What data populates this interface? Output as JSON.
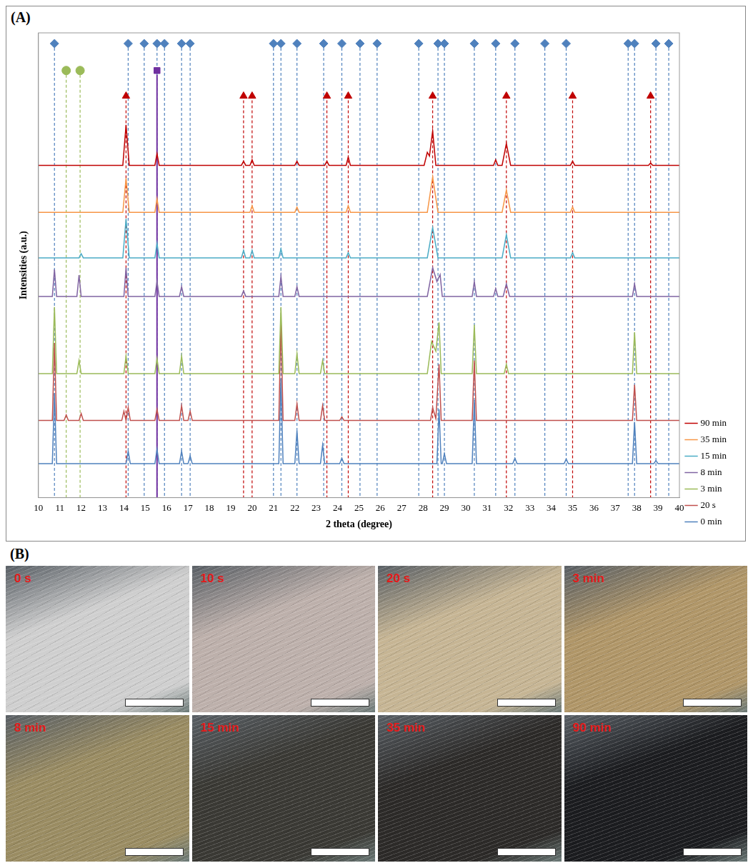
{
  "chart_data": {
    "type": "line",
    "x_label": "2 theta (degree)",
    "y_label": "Intensities (a.u.)",
    "xlim": [
      10,
      40
    ],
    "xticks": [
      10,
      11,
      12,
      13,
      14,
      15,
      16,
      17,
      18,
      19,
      20,
      21,
      22,
      23,
      24,
      25,
      26,
      27,
      28,
      29,
      30,
      31,
      32,
      33,
      34,
      35,
      36,
      37,
      38,
      39,
      40
    ],
    "ylim": [
      0,
      100
    ],
    "tick_labels": "x",
    "grid": false,
    "legend": "right",
    "series": [
      {
        "name": "90 min",
        "color": "#c00000",
        "x": [
          10,
          13.95,
          14.1,
          14.25,
          15.45,
          15.55,
          15.65,
          19.5,
          19.6,
          19.7,
          19.9,
          20.0,
          20.1,
          22.0,
          22.1,
          22.2,
          23.4,
          23.5,
          23.6,
          24.4,
          24.5,
          24.6,
          28.05,
          28.2,
          28.3,
          28.45,
          28.6,
          31.3,
          31.4,
          31.5,
          31.7,
          31.9,
          32.1,
          34.9,
          35.0,
          35.1,
          38.55,
          38.65,
          38.75,
          40
        ],
        "values": [
          71.5,
          71.5,
          80.2,
          71.5,
          71.5,
          74,
          71.5,
          71.5,
          72.4,
          71.5,
          71.5,
          72.7,
          71.5,
          71.5,
          72.4,
          71.5,
          71.5,
          72.4,
          71.5,
          71.5,
          73.3,
          71.5,
          71.5,
          74.3,
          73.5,
          78.9,
          71.5,
          71.5,
          72.7,
          71.5,
          71.5,
          76.2,
          71.5,
          71.5,
          72.4,
          71.5,
          71.5,
          72,
          71.5,
          71.5
        ]
      },
      {
        "name": "35 min",
        "color": "#f79646",
        "x": [
          10,
          13.95,
          14.1,
          14.25,
          15.45,
          15.55,
          15.65,
          19.9,
          20.0,
          20.1,
          22.0,
          22.1,
          22.2,
          24.4,
          24.5,
          24.6,
          28.2,
          28.45,
          28.7,
          31.7,
          31.9,
          32.1,
          34.9,
          35.0,
          35.1,
          40
        ],
        "values": [
          61.4,
          61.4,
          68.7,
          61.4,
          61.4,
          64.3,
          61.4,
          61.4,
          62.8,
          61.4,
          61.4,
          62.5,
          61.4,
          61.4,
          62.8,
          61.4,
          61.4,
          69,
          61.4,
          61.4,
          66.2,
          61.4,
          61.4,
          62.5,
          61.4,
          61.4
        ]
      },
      {
        "name": "15 min",
        "color": "#4bacc6",
        "x": [
          10,
          11.9,
          12.0,
          12.1,
          13.95,
          14.1,
          14.25,
          15.45,
          15.55,
          15.65,
          19.5,
          19.6,
          19.7,
          19.9,
          20.0,
          20.1,
          21.25,
          21.35,
          21.45,
          24.4,
          24.5,
          24.6,
          28.2,
          28.45,
          28.7,
          31.7,
          31.9,
          32.1,
          34.9,
          35.0,
          35.1,
          40
        ],
        "values": [
          51.6,
          51.6,
          52.5,
          51.6,
          51.6,
          60,
          51.6,
          51.6,
          54.7,
          51.6,
          51.6,
          53.2,
          51.6,
          51.6,
          53.2,
          51.6,
          51.6,
          53.5,
          51.6,
          51.6,
          52.7,
          51.6,
          51.6,
          58.1,
          51.6,
          51.6,
          56.6,
          51.6,
          51.6,
          52.7,
          51.6,
          51.6
        ]
      },
      {
        "name": "8 min",
        "color": "#8064a2",
        "x": [
          10,
          10.65,
          10.75,
          10.85,
          11.8,
          11.9,
          12.0,
          14.0,
          14.1,
          14.2,
          15.45,
          15.55,
          15.65,
          16.6,
          16.7,
          16.8,
          19.5,
          19.6,
          19.7,
          21.25,
          21.35,
          21.45,
          22.0,
          22.1,
          22.2,
          28.2,
          28.45,
          28.65,
          28.8,
          28.9,
          30.3,
          30.4,
          30.5,
          31.3,
          31.4,
          31.5,
          31.75,
          31.9,
          32.05,
          37.8,
          37.9,
          38.0,
          40
        ],
        "values": [
          43.3,
          43.3,
          49.1,
          43.3,
          43.3,
          47.9,
          43.3,
          43.3,
          49.5,
          43.3,
          43.3,
          46.5,
          43.3,
          43.3,
          45.4,
          43.3,
          43.3,
          44.5,
          43.3,
          43.3,
          47.6,
          43.3,
          43.3,
          45.4,
          43.3,
          43.3,
          49.5,
          46.5,
          48,
          43.3,
          43.3,
          46.5,
          43.3,
          43.3,
          45,
          43.3,
          43.3,
          46,
          43.3,
          43.3,
          46,
          43.3,
          43.3
        ]
      },
      {
        "name": "3 min",
        "color": "#9bbb59",
        "x": [
          10,
          10.65,
          10.75,
          10.85,
          11.8,
          11.9,
          12.0,
          14.0,
          14.1,
          14.2,
          15.45,
          15.55,
          15.65,
          16.6,
          16.7,
          16.8,
          21.25,
          21.35,
          21.45,
          22.0,
          22.1,
          22.2,
          23.2,
          23.3,
          23.4,
          28.2,
          28.4,
          28.6,
          28.75,
          28.85,
          30.3,
          30.4,
          30.5,
          31.8,
          31.9,
          32.0,
          37.8,
          37.9,
          38.0,
          40
        ],
        "values": [
          26.7,
          26.7,
          41,
          26.7,
          26.7,
          29.5,
          26.7,
          26.7,
          30.5,
          26.7,
          26.7,
          29.9,
          26.7,
          26.7,
          30.5,
          26.7,
          26.7,
          41,
          26.7,
          26.7,
          31,
          26.7,
          26.7,
          29.5,
          26.7,
          26.7,
          33.6,
          31.5,
          37.7,
          26.7,
          26.7,
          37.2,
          26.7,
          26.7,
          28.7,
          26.7,
          26.7,
          35.6,
          26.7,
          26.7
        ]
      },
      {
        "name": "20 s",
        "color": "#c0504d",
        "x": [
          10,
          10.65,
          10.75,
          10.85,
          11.2,
          11.3,
          11.4,
          11.9,
          12.0,
          12.1,
          13.9,
          14.0,
          14.1,
          14.2,
          14.3,
          15.45,
          15.55,
          15.65,
          16.6,
          16.7,
          16.8,
          17.0,
          17.1,
          17.2,
          21.25,
          21.35,
          21.45,
          22.0,
          22.1,
          22.2,
          23.2,
          23.3,
          23.4,
          24.1,
          24.2,
          24.3,
          28.35,
          28.45,
          28.6,
          28.75,
          28.85,
          30.3,
          30.4,
          30.5,
          37.8,
          37.9,
          38.0,
          40
        ],
        "values": [
          16.6,
          16.6,
          33.3,
          16.6,
          16.6,
          17.8,
          16.6,
          16.6,
          18.1,
          16.6,
          16.6,
          18.6,
          16.6,
          19.4,
          16.6,
          16.6,
          19,
          16.6,
          16.6,
          19.8,
          16.6,
          16.6,
          18.6,
          16.6,
          16.6,
          38,
          16.6,
          16.6,
          20.2,
          16.6,
          16.6,
          19.8,
          16.6,
          16.6,
          17.4,
          16.6,
          16.6,
          19.4,
          17,
          28.7,
          16.6,
          16.6,
          29.5,
          16.6,
          16.6,
          24.3,
          16.6,
          16.6
        ]
      },
      {
        "name": "0 min",
        "color": "#4f81bd",
        "x": [
          10,
          10.65,
          10.75,
          10.85,
          14.1,
          14.2,
          14.3,
          15.45,
          15.55,
          15.65,
          16.6,
          16.7,
          16.8,
          17.0,
          17.1,
          17.2,
          21.25,
          21.35,
          21.45,
          22.0,
          22.1,
          22.2,
          23.2,
          23.3,
          23.4,
          24.1,
          24.2,
          24.3,
          28.65,
          28.75,
          28.85,
          28.9,
          29.0,
          29.1,
          30.3,
          30.4,
          30.5,
          32.2,
          32.3,
          32.4,
          34.6,
          34.7,
          34.8,
          37.8,
          37.9,
          38.0,
          38.8,
          38.9,
          39.0,
          40
        ],
        "values": [
          7.3,
          7.3,
          22.5,
          7.3,
          7.3,
          10,
          7.3,
          7.3,
          10.4,
          7.3,
          7.3,
          10,
          7.3,
          7.3,
          9,
          7.3,
          7.3,
          25.6,
          7.3,
          7.3,
          14.4,
          7.3,
          7.3,
          11.3,
          7.3,
          7.3,
          8.5,
          7.3,
          7.3,
          19,
          7.3,
          7.3,
          9.5,
          7.3,
          7.3,
          21,
          7.3,
          7.3,
          8.5,
          7.3,
          7.3,
          8.3,
          7.3,
          7.3,
          16.3,
          7.3,
          7.3,
          8,
          7.3,
          7.3
        ]
      }
    ],
    "markers": [
      {
        "marker": "diamond",
        "color": "#4f81bd",
        "line_style": "dashed",
        "x": [
          10.75,
          14.2,
          14.95,
          15.55,
          15.9,
          16.7,
          17.1,
          21.0,
          21.35,
          22.1,
          23.35,
          24.2,
          25.05,
          25.85,
          27.8,
          28.7,
          29.0,
          30.4,
          31.4,
          32.3,
          33.7,
          34.7,
          37.6,
          37.9,
          38.9,
          39.5
        ],
        "values": [
          97.7,
          97.7,
          97.7,
          97.7,
          97.7,
          97.7,
          97.7,
          97.7,
          97.7,
          97.7,
          97.7,
          97.7,
          97.7,
          97.7,
          97.7,
          97.7,
          97.7,
          97.7,
          97.7,
          97.7,
          97.7,
          97.7,
          97.7,
          97.7,
          97.7,
          97.7
        ]
      },
      {
        "marker": "circle",
        "color": "#9bbb59",
        "line_style": "dashed",
        "x": [
          11.3,
          11.95
        ],
        "values": [
          91.9,
          91.9
        ]
      },
      {
        "marker": "square",
        "color": "#7030a0",
        "line_style": "solid",
        "x": [
          15.55
        ],
        "values": [
          91.9
        ]
      },
      {
        "marker": "triangle",
        "color": "#c00000",
        "line_style": "dashed",
        "x": [
          14.1,
          19.6,
          20.0,
          23.5,
          24.5,
          28.45,
          31.9,
          35.0,
          38.65
        ],
        "values": [
          86.4,
          86.4,
          86.4,
          86.4,
          86.4,
          86.4,
          86.4,
          86.4,
          86.4
        ]
      }
    ]
  },
  "panel_labels": [
    "(A)",
    "(B)"
  ],
  "photos": [
    {
      "label": "0 s",
      "color": "#cfcfcf"
    },
    {
      "label": "10 s",
      "color": "#bdb0ab"
    },
    {
      "label": "20 s",
      "color": "#c6b594"
    },
    {
      "label": "3 min",
      "color": "#b09668"
    },
    {
      "label": "8 min",
      "color": "#9a8c62"
    },
    {
      "label": "15 min",
      "color": "#3a3934"
    },
    {
      "label": "35 min",
      "color": "#2c2a28"
    },
    {
      "label": "90 min",
      "color": "#1b1c1f"
    }
  ]
}
